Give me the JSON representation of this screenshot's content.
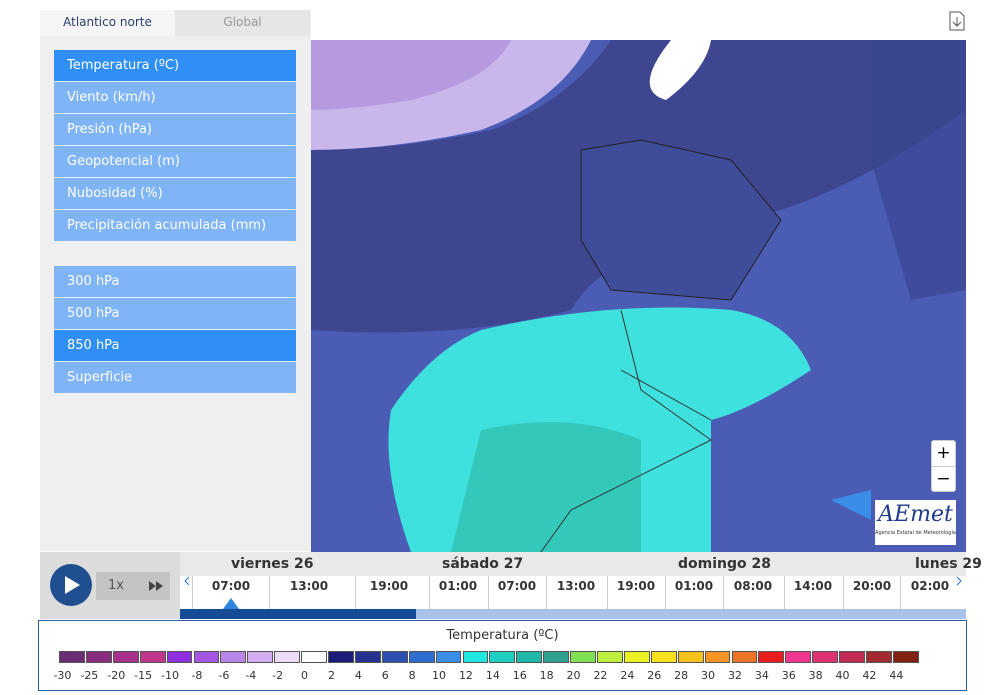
{
  "tabs": [
    {
      "label": "Atlantico norte",
      "active": true
    },
    {
      "label": "Global",
      "active": false
    }
  ],
  "variables": [
    {
      "label": "Temperatura (ºC)",
      "selected": true
    },
    {
      "label": "Viento (km/h)",
      "selected": false
    },
    {
      "label": "Presión (hPa)",
      "selected": false
    },
    {
      "label": "Geopotencial (m)",
      "selected": false
    },
    {
      "label": "Nubosidad (%)",
      "selected": false
    },
    {
      "label": "Precipitación acumulada (mm)",
      "selected": false
    }
  ],
  "levels": [
    {
      "label": "300 hPa",
      "selected": false
    },
    {
      "label": "500 hPa",
      "selected": false
    },
    {
      "label": "850 hPa",
      "selected": true
    },
    {
      "label": "Superficie",
      "selected": false
    }
  ],
  "zoom": {
    "in": "+",
    "out": "−"
  },
  "logo": {
    "name": "AEmet",
    "subtitle": "Agencia Estatal de Meteorología"
  },
  "player": {
    "speed": "1x"
  },
  "timeline": {
    "days": [
      "viernes 26",
      "sábado 27",
      "domingo 28",
      "lunes 29"
    ],
    "times": [
      "07:00",
      "13:00",
      "19:00",
      "01:00",
      "07:00",
      "13:00",
      "19:00",
      "01:00",
      "08:00",
      "14:00",
      "20:00",
      "02:00"
    ]
  },
  "legend": {
    "title": "Temperatura (ºC)",
    "items": [
      {
        "label": "-30",
        "color": "#6b2d74"
      },
      {
        "label": "-25",
        "color": "#8a2c7e"
      },
      {
        "label": "-20",
        "color": "#a7308c"
      },
      {
        "label": "-15",
        "color": "#c0368c"
      },
      {
        "label": "-10",
        "color": "#8e2fe0"
      },
      {
        "label": "-8",
        "color": "#a455e2"
      },
      {
        "label": "-6",
        "color": "#bb86ea"
      },
      {
        "label": "-4",
        "color": "#d4aef2"
      },
      {
        "label": "-2",
        "color": "#ecdcf8"
      },
      {
        "label": "0",
        "color": "#ffffff"
      },
      {
        "label": "2",
        "color": "#1b1c78"
      },
      {
        "label": "4",
        "color": "#24318f"
      },
      {
        "label": "6",
        "color": "#2a4fae"
      },
      {
        "label": "8",
        "color": "#2f6ed0"
      },
      {
        "label": "10",
        "color": "#3a8ee8"
      },
      {
        "label": "12",
        "color": "#22e6e0"
      },
      {
        "label": "14",
        "color": "#1fcfc2"
      },
      {
        "label": "16",
        "color": "#20b8a8"
      },
      {
        "label": "18",
        "color": "#2fa090"
      },
      {
        "label": "20",
        "color": "#7ee052"
      },
      {
        "label": "22",
        "color": "#bcef3e"
      },
      {
        "label": "24",
        "color": "#eaf223"
      },
      {
        "label": "26",
        "color": "#f8e01e"
      },
      {
        "label": "28",
        "color": "#f8c21e"
      },
      {
        "label": "30",
        "color": "#f79424"
      },
      {
        "label": "32",
        "color": "#f07426"
      },
      {
        "label": "34",
        "color": "#e81c1c"
      },
      {
        "label": "36",
        "color": "#f0358f"
      },
      {
        "label": "38",
        "color": "#de3172"
      },
      {
        "label": "40",
        "color": "#c02a52"
      },
      {
        "label": "42",
        "color": "#a22a30"
      },
      {
        "label": "44",
        "color": "#822212"
      }
    ]
  }
}
